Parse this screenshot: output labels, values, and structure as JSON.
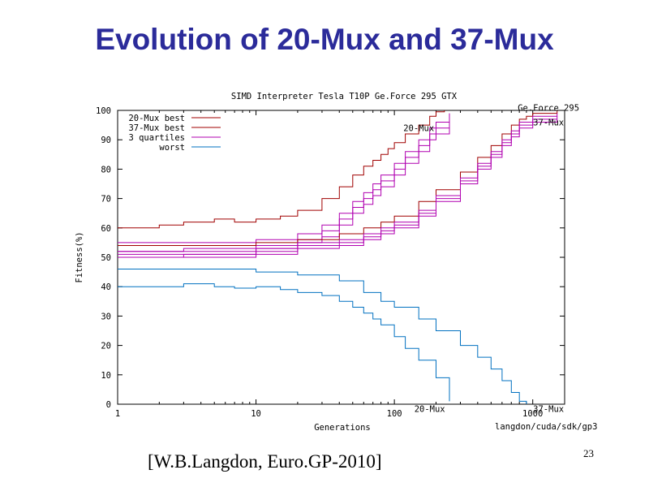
{
  "slide": {
    "title": "Evolution of 20-Mux and 37-Mux",
    "citation": "[W.B.Langdon, Euro.GP-2010]",
    "page_number": "23"
  },
  "chart_data": {
    "type": "line",
    "title": "SIMD Interpreter Tesla T10P Ge.Force 295 GTX",
    "xlabel": "Generations",
    "ylabel": "Fitness(%)",
    "x_scale": "log",
    "xlim": [
      1,
      1700
    ],
    "ylim": [
      0,
      100
    ],
    "x_ticks": [
      1,
      10,
      100,
      1000
    ],
    "x_tick_labels": [
      "1",
      "10",
      "100",
      "1000"
    ],
    "y_ticks": [
      0,
      10,
      20,
      30,
      40,
      50,
      60,
      70,
      80,
      90,
      100
    ],
    "y_tick_labels": [
      "0",
      "10",
      "20",
      "30",
      "40",
      "50",
      "60",
      "70",
      "80",
      "90",
      "100"
    ],
    "grid": false,
    "legend_position": "top-left",
    "legend": [
      {
        "label": "20-Mux best",
        "color": "#a00000"
      },
      {
        "label": "37-Mux best",
        "color": "#a00000"
      },
      {
        "label": "3 quartiles",
        "color": "#b000b0"
      },
      {
        "label": "worst",
        "color": "#0070c0"
      }
    ],
    "annotations": [
      {
        "text": "20-Mux",
        "x": 150,
        "y": 94
      },
      {
        "text": "Ge.Force 295",
        "x": 1300,
        "y": 101
      },
      {
        "text": "37-Mux",
        "x": 1300,
        "y": 96
      },
      {
        "text": "20-Mux",
        "x": 180,
        "y": -1.5
      },
      {
        "text": "37-Mux",
        "x": 1300,
        "y": -1.5
      },
      {
        "text": "langdon/cuda/sdk/gp3",
        "x": 1250,
        "y": -7.5
      }
    ],
    "series": [
      {
        "name": "20-Mux best",
        "color": "#a00000",
        "x": [
          1,
          2,
          3,
          5,
          7,
          10,
          15,
          20,
          30,
          40,
          50,
          60,
          70,
          80,
          90,
          100,
          120,
          150,
          180,
          200,
          230
        ],
        "y": [
          60,
          61,
          62,
          63,
          62,
          63,
          64,
          66,
          70,
          74,
          78,
          81,
          83,
          85,
          87,
          89,
          92,
          95,
          98,
          99.5,
          100
        ]
      },
      {
        "name": "20-Mux upper quartile",
        "color": "#b000b0",
        "x": [
          1,
          3,
          10,
          20,
          30,
          40,
          50,
          60,
          70,
          80,
          100,
          120,
          150,
          180,
          200,
          250
        ],
        "y": [
          55,
          55,
          56,
          58,
          61,
          65,
          69,
          72,
          75,
          78,
          82,
          86,
          90,
          94,
          96,
          99
        ]
      },
      {
        "name": "20-Mux median",
        "color": "#b000b0",
        "x": [
          1,
          3,
          10,
          20,
          30,
          40,
          50,
          60,
          70,
          80,
          100,
          120,
          150,
          180,
          200,
          250
        ],
        "y": [
          52,
          53,
          54,
          56,
          59,
          63,
          67,
          70,
          73,
          76,
          80,
          84,
          88,
          92,
          94,
          98
        ]
      },
      {
        "name": "20-Mux lower quartile",
        "color": "#b000b0",
        "x": [
          1,
          3,
          10,
          20,
          30,
          40,
          50,
          60,
          70,
          80,
          100,
          120,
          150,
          180,
          200,
          250
        ],
        "y": [
          50,
          51,
          53,
          55,
          57,
          61,
          65,
          68,
          71,
          74,
          78,
          82,
          86,
          90,
          92,
          96
        ]
      },
      {
        "name": "20-Mux worst",
        "color": "#0070c0",
        "x": [
          1,
          2,
          3,
          5,
          7,
          10,
          15,
          20,
          30,
          40,
          50,
          60,
          70,
          80,
          100,
          120,
          150,
          200,
          250
        ],
        "y": [
          40,
          40,
          41,
          40,
          39.5,
          40,
          39,
          38,
          37,
          35,
          33,
          31,
          29,
          27,
          23,
          19,
          15,
          9,
          1
        ]
      },
      {
        "name": "37-Mux best",
        "color": "#a00000",
        "x": [
          1,
          3,
          10,
          20,
          40,
          60,
          80,
          100,
          150,
          200,
          300,
          400,
          500,
          600,
          700,
          800,
          900,
          1000,
          1500
        ],
        "y": [
          54,
          54,
          55,
          56,
          58,
          60,
          62,
          64,
          69,
          73,
          79,
          84,
          88,
          92,
          95,
          97,
          98,
          99,
          100
        ]
      },
      {
        "name": "37-Mux upper quartile",
        "color": "#b000b0",
        "x": [
          1,
          3,
          10,
          20,
          40,
          60,
          80,
          100,
          150,
          200,
          300,
          400,
          500,
          600,
          700,
          800,
          1000,
          1500
        ],
        "y": [
          52,
          52,
          53,
          55,
          56,
          58,
          60,
          62,
          66,
          71,
          77,
          82,
          86,
          90,
          93,
          96,
          98,
          99
        ]
      },
      {
        "name": "37-Mux median",
        "color": "#b000b0",
        "x": [
          1,
          3,
          10,
          20,
          40,
          60,
          80,
          100,
          150,
          200,
          300,
          400,
          500,
          600,
          700,
          800,
          1000,
          1500
        ],
        "y": [
          51,
          51,
          52,
          54,
          55,
          57,
          59,
          61,
          65,
          70,
          76,
          81,
          85,
          89,
          92,
          95,
          97,
          98
        ]
      },
      {
        "name": "37-Mux lower quartile",
        "color": "#b000b0",
        "x": [
          1,
          3,
          10,
          20,
          40,
          60,
          80,
          100,
          150,
          200,
          300,
          400,
          500,
          600,
          700,
          800,
          1000,
          1500
        ],
        "y": [
          50,
          50,
          51,
          53,
          54,
          56,
          58,
          60,
          64,
          69,
          75,
          80,
          84,
          88,
          91,
          94,
          96,
          97
        ]
      },
      {
        "name": "37-Mux worst",
        "color": "#0070c0",
        "x": [
          1,
          3,
          10,
          20,
          40,
          60,
          80,
          100,
          150,
          200,
          300,
          400,
          500,
          600,
          700,
          800,
          900
        ],
        "y": [
          46,
          46,
          45,
          44,
          42,
          38,
          35,
          33,
          29,
          25,
          20,
          16,
          12,
          8,
          4,
          1,
          0
        ]
      }
    ]
  }
}
